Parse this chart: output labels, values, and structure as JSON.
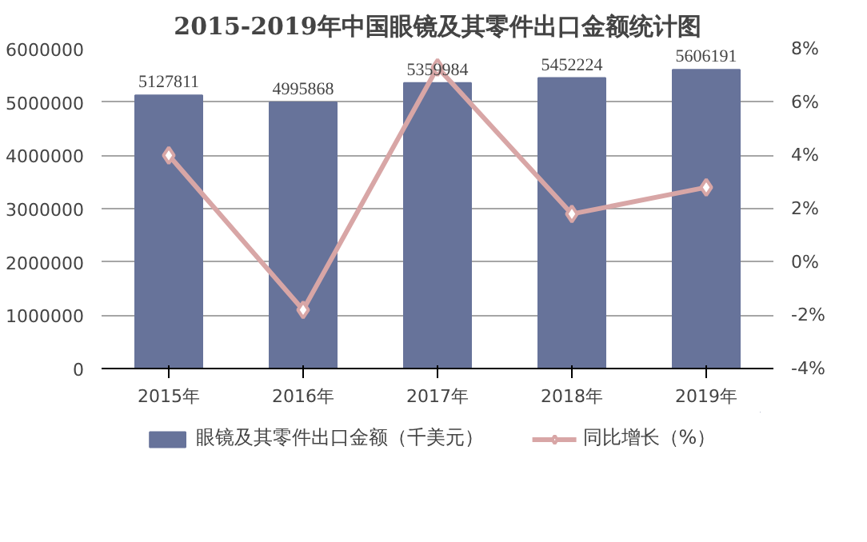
{
  "chart_data": {
    "type": "bar",
    "title": "2015-2019年中国眼镜及其零件出口金额统计图",
    "categories": [
      "2015年",
      "2016年",
      "2017年",
      "2018年",
      "2019年"
    ],
    "series": [
      {
        "name": "眼镜及其零件出口金额（千美元）",
        "color": "#67739a",
        "values": [
          5127811,
          4995868,
          5359984,
          5452224,
          5606191
        ]
      },
      {
        "name": "同比增长（%）",
        "type": "line",
        "axis": "y2",
        "color": "#d8a6a6",
        "marker": "diamond",
        "values": [
          4.0,
          -1.8,
          7.3,
          1.8,
          2.8
        ]
      }
    ],
    "value_labels": [
      "5127811",
      "4995868",
      "5359984",
      "5452224",
      "5606191"
    ],
    "ylim": [
      0,
      6000000
    ],
    "yticks": [
      0,
      1000000,
      2000000,
      3000000,
      4000000,
      5000000,
      6000000
    ],
    "y2lim": [
      -4,
      8
    ],
    "y2ticks": [
      {
        "value": -4,
        "label": "-4%"
      },
      {
        "value": -2,
        "label": "-2%"
      },
      {
        "value": 0,
        "label": "0%"
      },
      {
        "value": 2,
        "label": "2%"
      },
      {
        "value": 4,
        "label": "4%"
      },
      {
        "value": 6,
        "label": "6%"
      },
      {
        "value": 8,
        "label": "8%"
      }
    ],
    "grid": "y",
    "legend": "bottom"
  }
}
